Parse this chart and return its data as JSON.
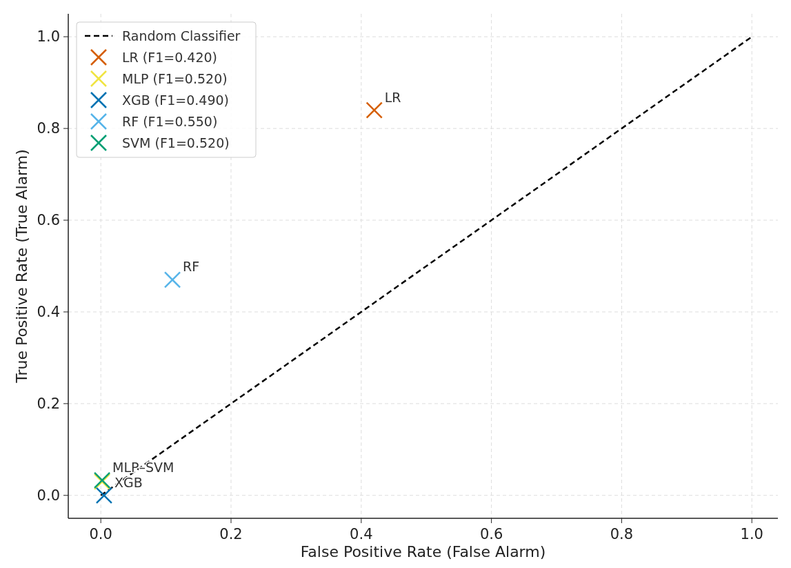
{
  "chart_data": {
    "type": "scatter",
    "xlabel": "False Positive Rate (False Alarm)",
    "ylabel": "True Positive Rate (True Alarm)",
    "series": [
      {
        "name": "Random Classifier",
        "type": "line",
        "color": "#000000",
        "line_style": "dashed",
        "marker": "none",
        "x": [
          0,
          1
        ],
        "values": [
          0,
          1
        ]
      },
      {
        "name": "LR (F1=0.420)",
        "color": "#d55e00",
        "x": [
          0.42
        ],
        "values": [
          0.84
        ]
      },
      {
        "name": "MLP (F1=0.520)",
        "color": "#f0e442",
        "x": [
          0.002
        ],
        "values": [
          0.03
        ]
      },
      {
        "name": "XGB (F1=0.490)",
        "color": "#0072b2",
        "x": [
          0.005
        ],
        "values": [
          0.0
        ]
      },
      {
        "name": "RF (F1=0.550)",
        "color": "#56b4e9",
        "x": [
          0.11
        ],
        "values": [
          0.47
        ]
      },
      {
        "name": "SVM (F1=0.520)",
        "color": "#009e73",
        "x": [
          0.002
        ],
        "values": [
          0.033
        ]
      }
    ],
    "marker": "cross",
    "xlim": [
      -0.05,
      1.04
    ],
    "ylim": [
      -0.05,
      1.05
    ],
    "xticks": [
      {
        "value": 0,
        "label": "0.0"
      },
      {
        "value": 0.2,
        "label": "0.2"
      },
      {
        "value": 0.4,
        "label": "0.4"
      },
      {
        "value": 0.6,
        "label": "0.6"
      },
      {
        "value": 0.8,
        "label": "0.8"
      },
      {
        "value": 1,
        "label": "1.0"
      }
    ],
    "yticks": [
      {
        "value": 0,
        "label": "0.0"
      },
      {
        "value": 0.2,
        "label": "0.2"
      },
      {
        "value": 0.4,
        "label": "0.4"
      },
      {
        "value": 0.6,
        "label": "0.6"
      },
      {
        "value": 0.8,
        "label": "0.8"
      },
      {
        "value": 1,
        "label": "1.0"
      }
    ],
    "grid": true,
    "legend": "top left",
    "annotations": [
      {
        "text": "LR",
        "x": 0.42,
        "y": 0.84
      },
      {
        "text": "RF",
        "x": 0.11,
        "y": 0.47
      },
      {
        "text": "MLP–SVM",
        "x": 0.002,
        "y": 0.033
      },
      {
        "text": "XGB",
        "x": 0.005,
        "y": 0.0
      }
    ]
  }
}
